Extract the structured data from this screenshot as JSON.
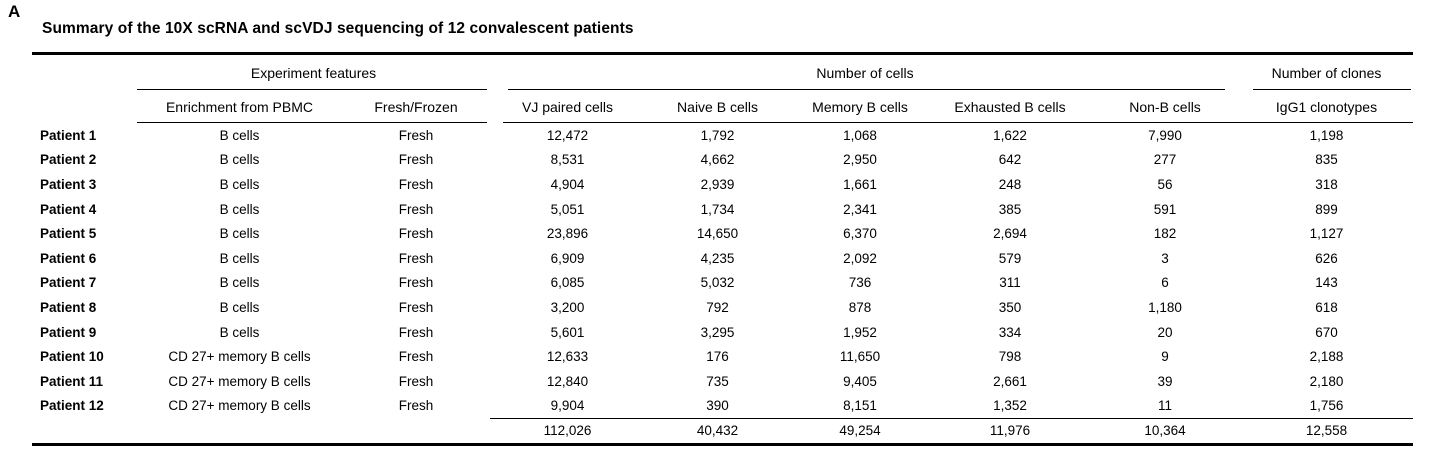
{
  "panel_label": "A",
  "title": "Summary of the 10X scRNA and scVDJ sequencing of 12 convalescent patients",
  "table": {
    "groups": [
      {
        "label": "Experiment features"
      },
      {
        "label": "Number of cells"
      },
      {
        "label": "Number of clones"
      }
    ],
    "columns": [
      "Enrichment from PBMC",
      "Fresh/Frozen",
      "VJ paired cells",
      "Naive B cells",
      "Memory B cells",
      "Exhausted B cells",
      "Non-B cells",
      "IgG1 clonotypes"
    ],
    "rows": [
      [
        "Patient 1",
        "B cells",
        "Fresh",
        "12,472",
        "1,792",
        "1,068",
        "1,622",
        "7,990",
        "1,198"
      ],
      [
        "Patient 2",
        "B cells",
        "Fresh",
        "8,531",
        "4,662",
        "2,950",
        "642",
        "277",
        "835"
      ],
      [
        "Patient 3",
        "B cells",
        "Fresh",
        "4,904",
        "2,939",
        "1,661",
        "248",
        "56",
        "318"
      ],
      [
        "Patient 4",
        "B cells",
        "Fresh",
        "5,051",
        "1,734",
        "2,341",
        "385",
        "591",
        "899"
      ],
      [
        "Patient 5",
        "B cells",
        "Fresh",
        "23,896",
        "14,650",
        "6,370",
        "2,694",
        "182",
        "1,127"
      ],
      [
        "Patient 6",
        "B cells",
        "Fresh",
        "6,909",
        "4,235",
        "2,092",
        "579",
        "3",
        "626"
      ],
      [
        "Patient 7",
        "B cells",
        "Fresh",
        "6,085",
        "5,032",
        "736",
        "311",
        "6",
        "143"
      ],
      [
        "Patient 8",
        "B cells",
        "Fresh",
        "3,200",
        "792",
        "878",
        "350",
        "1,180",
        "618"
      ],
      [
        "Patient 9",
        "B cells",
        "Fresh",
        "5,601",
        "3,295",
        "1,952",
        "334",
        "20",
        "670"
      ],
      [
        "Patient 10",
        "CD 27+ memory B cells",
        "Fresh",
        "12,633",
        "176",
        "11,650",
        "798",
        "9",
        "2,188"
      ],
      [
        "Patient 11",
        "CD 27+ memory B cells",
        "Fresh",
        "12,840",
        "735",
        "9,405",
        "2,661",
        "39",
        "2,180"
      ],
      [
        "Patient 12",
        "CD 27+ memory B cells",
        "Fresh",
        "9,904",
        "390",
        "8,151",
        "1,352",
        "11",
        "1,756"
      ]
    ],
    "totals": [
      "112,026",
      "40,432",
      "49,254",
      "11,976",
      "10,364",
      "12,558"
    ]
  },
  "colors": {
    "text": "#000000",
    "background": "#ffffff",
    "rule": "#000000"
  }
}
